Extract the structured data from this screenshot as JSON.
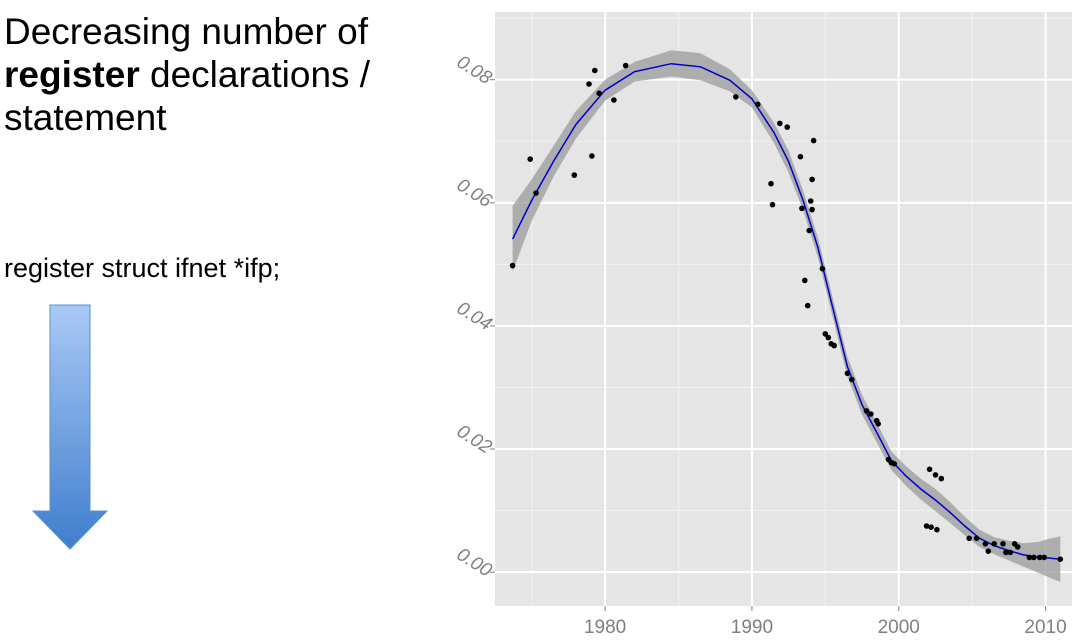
{
  "slide": {
    "title_line1": "Decreasing number of",
    "title_bold": "register",
    "title_rest": " declarations /",
    "title_line3": "statement",
    "code_example": "register struct ifnet *ifp;",
    "arrow_color_top": "#a9c9f5",
    "arrow_color_bottom": "#3f7ecd"
  },
  "chart_data": {
    "type": "scatter",
    "title": "",
    "xlabel": "",
    "ylabel": "",
    "xlim": [
      1972.5,
      2011.8
    ],
    "ylim": [
      -0.0055,
      0.091
    ],
    "x_ticks": [
      1980,
      1990,
      2000,
      2010
    ],
    "x_tick_labels": [
      "1980",
      "1990",
      "2000",
      "2010"
    ],
    "y_ticks": [
      0.0,
      0.02,
      0.04,
      0.06,
      0.08
    ],
    "y_tick_labels": [
      "0.00",
      "0.02",
      "0.04",
      "0.06",
      "0.08"
    ],
    "grid": true,
    "background": "#e5e5e5",
    "point_color": "#000000",
    "smooth_color": "#0000cc",
    "band_color": "#999999",
    "points": [
      [
        1973.7,
        0.0498
      ],
      [
        1974.9,
        0.0671
      ],
      [
        1975.3,
        0.0616
      ],
      [
        1977.9,
        0.0645
      ],
      [
        1978.9,
        0.0793
      ],
      [
        1979.1,
        0.0676
      ],
      [
        1979.3,
        0.0815
      ],
      [
        1979.6,
        0.0778
      ],
      [
        1980.6,
        0.0767
      ],
      [
        1981.4,
        0.0823
      ],
      [
        1988.9,
        0.0772
      ],
      [
        1990.4,
        0.076
      ],
      [
        1991.3,
        0.0631
      ],
      [
        1991.4,
        0.0597
      ],
      [
        1991.9,
        0.0729
      ],
      [
        1992.4,
        0.0723
      ],
      [
        1993.3,
        0.0675
      ],
      [
        1993.4,
        0.0591
      ],
      [
        1993.6,
        0.0474
      ],
      [
        1993.8,
        0.0433
      ],
      [
        1993.9,
        0.0555
      ],
      [
        1994.0,
        0.0603
      ],
      [
        1994.1,
        0.0589
      ],
      [
        1994.1,
        0.0638
      ],
      [
        1994.2,
        0.0701
      ],
      [
        1994.8,
        0.0493
      ],
      [
        1995.0,
        0.0387
      ],
      [
        1995.2,
        0.0381
      ],
      [
        1995.4,
        0.0371
      ],
      [
        1995.6,
        0.0368
      ],
      [
        1996.5,
        0.0323
      ],
      [
        1996.8,
        0.0313
      ],
      [
        1997.8,
        0.0262
      ],
      [
        1998.1,
        0.0257
      ],
      [
        1998.5,
        0.0246
      ],
      [
        1998.6,
        0.0241
      ],
      [
        1999.3,
        0.0183
      ],
      [
        1999.5,
        0.0178
      ],
      [
        1999.7,
        0.0176
      ],
      [
        2001.9,
        0.0075
      ],
      [
        2002.1,
        0.0167
      ],
      [
        2002.2,
        0.0073
      ],
      [
        2002.5,
        0.0158
      ],
      [
        2002.6,
        0.0069
      ],
      [
        2002.9,
        0.0152
      ],
      [
        2004.8,
        0.0055
      ],
      [
        2005.3,
        0.0055
      ],
      [
        2005.9,
        0.0046
      ],
      [
        2006.1,
        0.0034
      ],
      [
        2006.5,
        0.0046
      ],
      [
        2007.1,
        0.0046
      ],
      [
        2007.3,
        0.0032
      ],
      [
        2007.6,
        0.0032
      ],
      [
        2007.9,
        0.0046
      ],
      [
        2008.1,
        0.0041
      ],
      [
        2008.9,
        0.0024
      ],
      [
        2009.2,
        0.0024
      ],
      [
        2009.6,
        0.0024
      ],
      [
        2009.9,
        0.0024
      ],
      [
        2011.0,
        0.0021
      ]
    ],
    "smooth_line": [
      [
        1973.7,
        0.0541
      ],
      [
        1975.0,
        0.0604
      ],
      [
        1976.5,
        0.0668
      ],
      [
        1978.0,
        0.0727
      ],
      [
        1980.0,
        0.0783
      ],
      [
        1982.0,
        0.0813
      ],
      [
        1984.5,
        0.0826
      ],
      [
        1986.5,
        0.0821
      ],
      [
        1988.5,
        0.0799
      ],
      [
        1990.0,
        0.0769
      ],
      [
        1991.5,
        0.0714
      ],
      [
        1992.5,
        0.0667
      ],
      [
        1993.5,
        0.0603
      ],
      [
        1994.5,
        0.0527
      ],
      [
        1995.5,
        0.043
      ],
      [
        1996.5,
        0.0334
      ],
      [
        1997.5,
        0.0272
      ],
      [
        1998.5,
        0.0227
      ],
      [
        1999.5,
        0.0181
      ],
      [
        2000.5,
        0.0156
      ],
      [
        2001.5,
        0.0135
      ],
      [
        2002.5,
        0.0117
      ],
      [
        2003.5,
        0.0097
      ],
      [
        2004.5,
        0.0075
      ],
      [
        2005.5,
        0.0055
      ],
      [
        2006.5,
        0.0043
      ],
      [
        2007.5,
        0.0035
      ],
      [
        2008.5,
        0.0028
      ],
      [
        2009.5,
        0.0024
      ],
      [
        2010.2,
        0.0023
      ],
      [
        2011.0,
        0.0021
      ]
    ],
    "confidence_band": [
      [
        1973.7,
        0.0488,
        0.0595
      ],
      [
        1975.0,
        0.0571,
        0.0638
      ],
      [
        1976.5,
        0.0643,
        0.0693
      ],
      [
        1978.0,
        0.0704,
        0.0749
      ],
      [
        1980.0,
        0.0766,
        0.08
      ],
      [
        1982.0,
        0.0797,
        0.0829
      ],
      [
        1984.5,
        0.0805,
        0.0848
      ],
      [
        1986.5,
        0.0799,
        0.0843
      ],
      [
        1988.5,
        0.0781,
        0.0817
      ],
      [
        1990.0,
        0.0755,
        0.0783
      ],
      [
        1991.5,
        0.0697,
        0.073
      ],
      [
        1992.5,
        0.0649,
        0.0685
      ],
      [
        1993.5,
        0.0587,
        0.0619
      ],
      [
        1994.5,
        0.0511,
        0.0543
      ],
      [
        1995.5,
        0.0414,
        0.0446
      ],
      [
        1996.5,
        0.0318,
        0.035
      ],
      [
        1997.5,
        0.0256,
        0.0288
      ],
      [
        1998.5,
        0.0211,
        0.0243
      ],
      [
        1999.5,
        0.0166,
        0.0196
      ],
      [
        2000.5,
        0.014,
        0.0172
      ],
      [
        2001.5,
        0.0118,
        0.0152
      ],
      [
        2002.5,
        0.0099,
        0.0135
      ],
      [
        2003.5,
        0.008,
        0.0114
      ],
      [
        2004.5,
        0.006,
        0.009
      ],
      [
        2005.5,
        0.0041,
        0.0069
      ],
      [
        2006.5,
        0.0029,
        0.0057
      ],
      [
        2007.5,
        0.0019,
        0.0051
      ],
      [
        2008.5,
        0.0009,
        0.0047
      ],
      [
        2009.5,
        -0.0001,
        0.0049
      ],
      [
        2010.2,
        -0.0008,
        0.0054
      ],
      [
        2011.0,
        -0.0016,
        0.0058
      ]
    ]
  }
}
